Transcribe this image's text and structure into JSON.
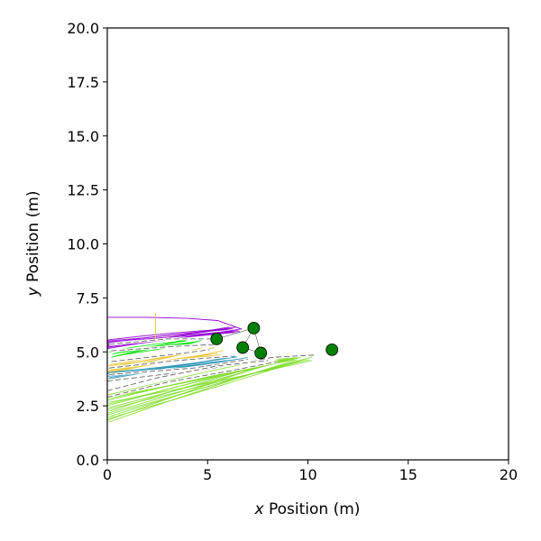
{
  "chart_data": {
    "type": "line",
    "title": "",
    "xlabel_var": "x",
    "xlabel_rest": " Position (m)",
    "ylabel_var": "y",
    "ylabel_rest": " Position (m)",
    "xlim": [
      0,
      20
    ],
    "ylim": [
      0,
      20
    ],
    "xticks": [
      0,
      5,
      10,
      15,
      20
    ],
    "yticks": [
      0.0,
      2.5,
      5.0,
      7.5,
      10.0,
      12.5,
      15.0,
      17.5,
      20.0
    ],
    "xtick_labels": [
      "0",
      "5",
      "10",
      "15",
      "20"
    ],
    "ytick_labels": [
      "0.0",
      "2.5",
      "5.0",
      "7.5",
      "10.0",
      "12.5",
      "15.0",
      "17.5",
      "20.0"
    ],
    "grid": false,
    "legend": "none",
    "colors": {
      "purple": "#9400d3",
      "green": "#00e000",
      "gold": "#e6c229",
      "teal": "#1f8fb4",
      "lime": "#7fdb2a",
      "dashed": "#555555",
      "marker": "#008000"
    },
    "markers": [
      {
        "x": 5.45,
        "y": 5.6
      },
      {
        "x": 6.75,
        "y": 5.2
      },
      {
        "x": 7.3,
        "y": 6.1
      },
      {
        "x": 7.65,
        "y": 4.95
      },
      {
        "x": 11.2,
        "y": 5.1
      }
    ],
    "connections": [
      [
        0,
        2
      ],
      [
        1,
        2
      ],
      [
        2,
        3
      ],
      [
        1,
        3
      ]
    ],
    "bundles": [
      {
        "color": "purple",
        "count": 10,
        "start_x": [
          0,
          0
        ],
        "start_y": [
          5.15,
          5.55
        ],
        "end_x": [
          6.0,
          6.7
        ],
        "end_y": [
          5.9,
          6.15
        ]
      },
      {
        "color": "green",
        "count": 7,
        "start_x": [
          0.1,
          0.6
        ],
        "start_y": [
          4.75,
          5.05
        ],
        "end_x": [
          3.9,
          4.7
        ],
        "end_y": [
          5.4,
          5.6
        ]
      },
      {
        "color": "gold",
        "count": 10,
        "start_x": [
          0,
          0.2
        ],
        "start_y": [
          4.0,
          4.4
        ],
        "end_x": [
          4.6,
          5.8
        ],
        "end_y": [
          4.8,
          5.2
        ]
      },
      {
        "color": "teal",
        "count": 6,
        "start_x": [
          0,
          0.1
        ],
        "start_y": [
          3.75,
          4.05
        ],
        "end_x": [
          6.3,
          7.0
        ],
        "end_y": [
          4.6,
          4.8
        ]
      },
      {
        "color": "lime",
        "count": 16,
        "start_x": [
          0,
          0.1
        ],
        "start_y": [
          1.75,
          3.0
        ],
        "end_x": [
          9.0,
          10.2
        ],
        "end_y": [
          4.6,
          4.85
        ]
      }
    ],
    "extra_lines": [
      {
        "color": "purple",
        "points": [
          [
            0,
            6.6
          ],
          [
            2.0,
            6.6
          ],
          [
            4.0,
            6.55
          ],
          [
            5.5,
            6.45
          ],
          [
            6.7,
            6.05
          ]
        ]
      },
      {
        "color": "gold",
        "points": [
          [
            2.4,
            6.8
          ],
          [
            2.4,
            5.5
          ]
        ]
      }
    ],
    "dashed_lines": [
      {
        "points": [
          [
            0.1,
            5.35
          ],
          [
            3.0,
            5.6
          ],
          [
            5.4,
            5.6
          ]
        ]
      },
      {
        "points": [
          [
            0.2,
            5.05
          ],
          [
            3.3,
            5.25
          ],
          [
            5.5,
            5.35
          ]
        ]
      },
      {
        "points": [
          [
            0.2,
            4.55
          ],
          [
            3.0,
            4.85
          ],
          [
            5.1,
            5.1
          ]
        ]
      },
      {
        "points": [
          [
            0.1,
            4.25
          ],
          [
            3.5,
            4.6
          ],
          [
            6.2,
            4.8
          ]
        ]
      },
      {
        "points": [
          [
            0.1,
            3.95
          ],
          [
            4.3,
            4.25
          ],
          [
            7.0,
            4.65
          ]
        ]
      },
      {
        "points": [
          [
            0.0,
            3.65
          ],
          [
            5.0,
            4.2
          ],
          [
            8.3,
            4.75
          ],
          [
            10.3,
            4.85
          ]
        ]
      },
      {
        "points": [
          [
            0.0,
            3.2
          ],
          [
            2.5,
            3.8
          ],
          [
            5.5,
            4.35
          ],
          [
            8.0,
            4.6
          ]
        ]
      },
      {
        "points": [
          [
            0.0,
            2.9
          ],
          [
            3.0,
            3.6
          ],
          [
            6.0,
            4.1
          ],
          [
            8.5,
            4.55
          ]
        ]
      }
    ]
  }
}
